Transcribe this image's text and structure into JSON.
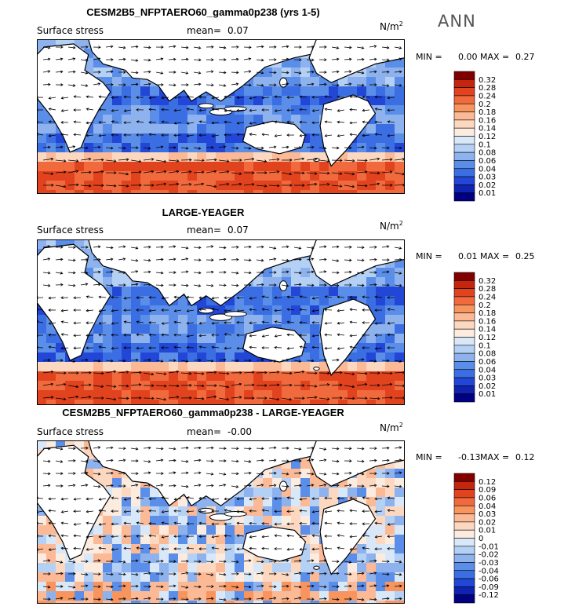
{
  "season": "ANN",
  "panels": [
    {
      "title": "CESM2B5_NFPTAERO60_gamma0p238 (yrs 1-5)",
      "variable": "Surface stress",
      "mean_label": "mean=",
      "mean_value": "0.07",
      "units": "N/m",
      "units_sup": "2",
      "min_label": "MIN =",
      "min_value": "0.00",
      "max_label": "MAX =",
      "max_value": "0.27",
      "colorbar_labels": [
        "0.32",
        "0.28",
        "0.24",
        "0.2",
        "0.18",
        "0.16",
        "0.14",
        "0.12",
        "0.1",
        "0.08",
        "0.06",
        "0.04",
        "0.03",
        "0.02",
        "0.01"
      ],
      "colorbar_colors": [
        "#800000",
        "#c3260d",
        "#e2431f",
        "#f16a3d",
        "#f8955e",
        "#fbb996",
        "#fdd8c0",
        "#fcece0",
        "#d8e8f8",
        "#b5d0f5",
        "#8eb2ee",
        "#5b8ee8",
        "#3b6ee3",
        "#2246d6",
        "#0f22b0",
        "#000080"
      ]
    },
    {
      "title": "LARGE-YEAGER",
      "variable": "Surface stress",
      "mean_label": "mean=",
      "mean_value": "0.07",
      "units": "N/m",
      "units_sup": "2",
      "min_label": "MIN =",
      "min_value": "0.01",
      "max_label": "MAX =",
      "max_value": "0.25",
      "colorbar_labels": [
        "0.32",
        "0.28",
        "0.24",
        "0.2",
        "0.18",
        "0.16",
        "0.14",
        "0.12",
        "0.1",
        "0.08",
        "0.06",
        "0.04",
        "0.03",
        "0.02",
        "0.01"
      ],
      "colorbar_colors": [
        "#800000",
        "#c3260d",
        "#e2431f",
        "#f16a3d",
        "#f8955e",
        "#fbb996",
        "#fdd8c0",
        "#fcece0",
        "#d8e8f8",
        "#b5d0f5",
        "#8eb2ee",
        "#5b8ee8",
        "#3b6ee3",
        "#2246d6",
        "#0f22b0",
        "#000080"
      ]
    },
    {
      "title": "CESM2B5_NFPTAERO60_gamma0p238 - LARGE-YEAGER",
      "variable": "Surface stress",
      "mean_label": "mean=",
      "mean_value": "-0.00",
      "units": "N/m",
      "units_sup": "2",
      "min_label": "MIN =",
      "min_value": "-0.13",
      "max_label": "MAX =",
      "max_value": "0.12",
      "colorbar_labels": [
        "0.12",
        "0.09",
        "0.06",
        "0.04",
        "0.03",
        "0.02",
        "0.01",
        "0",
        "-0.01",
        "-0.02",
        "-0.03",
        "-0.04",
        "-0.06",
        "-0.09",
        "-0.12"
      ],
      "colorbar_colors": [
        "#800000",
        "#c3260d",
        "#e2431f",
        "#f16a3d",
        "#f8955e",
        "#fbb996",
        "#fdd8c0",
        "#fcece0",
        "#d8e8f8",
        "#b5d0f5",
        "#8eb2ee",
        "#5b8ee8",
        "#3b6ee3",
        "#2246d6",
        "#0f22b0",
        "#000080"
      ]
    }
  ],
  "chart_data": [
    {
      "type": "heatmap",
      "title": "CESM2B5_NFPTAERO60_gamma0p238 (yrs 1-5)",
      "mean": 0.07,
      "min": 0.0,
      "max": 0.27,
      "units": "N/m2",
      "levels": [
        0.01,
        0.02,
        0.03,
        0.04,
        0.06,
        0.08,
        0.1,
        0.12,
        0.14,
        0.16,
        0.18,
        0.2,
        0.24,
        0.28,
        0.32
      ]
    },
    {
      "type": "heatmap",
      "title": "LARGE-YEAGER",
      "mean": 0.07,
      "min": 0.01,
      "max": 0.25,
      "units": "N/m2",
      "levels": [
        0.01,
        0.02,
        0.03,
        0.04,
        0.06,
        0.08,
        0.1,
        0.12,
        0.14,
        0.16,
        0.18,
        0.2,
        0.24,
        0.28,
        0.32
      ]
    },
    {
      "type": "heatmap",
      "title": "CESM2B5_NFPTAERO60_gamma0p238 - LARGE-YEAGER",
      "mean": -0.0,
      "min": -0.13,
      "max": 0.12,
      "units": "N/m2",
      "levels": [
        -0.12,
        -0.09,
        -0.06,
        -0.04,
        -0.03,
        -0.02,
        -0.01,
        0,
        0.01,
        0.02,
        0.03,
        0.04,
        0.06,
        0.09,
        0.12
      ]
    }
  ]
}
